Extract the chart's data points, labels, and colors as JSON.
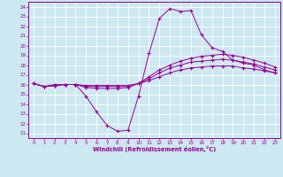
{
  "xlabel": "Windchill (Refroidissement éolien,°C)",
  "bg_color": "#cce8f0",
  "line_color": "#990099",
  "xlim": [
    -0.5,
    23.5
  ],
  "ylim": [
    10.5,
    24.5
  ],
  "xticks": [
    0,
    1,
    2,
    3,
    4,
    5,
    6,
    7,
    8,
    9,
    10,
    11,
    12,
    13,
    14,
    15,
    16,
    17,
    18,
    19,
    20,
    21,
    22,
    23
  ],
  "yticks": [
    11,
    12,
    13,
    14,
    15,
    16,
    17,
    18,
    19,
    20,
    21,
    22,
    23,
    24
  ],
  "line1_x": [
    0,
    1,
    2,
    3,
    4,
    5,
    6,
    7,
    8,
    9,
    10,
    11,
    12,
    13,
    14,
    15,
    16,
    17,
    18,
    19,
    20,
    21,
    22,
    23
  ],
  "line1_y": [
    16.1,
    15.8,
    16.0,
    16.0,
    16.0,
    14.8,
    13.2,
    11.8,
    11.2,
    11.3,
    14.8,
    19.2,
    22.8,
    23.8,
    23.5,
    23.6,
    21.1,
    19.8,
    19.4,
    18.5,
    18.2,
    18.0,
    17.5,
    17.2
  ],
  "line2_x": [
    0,
    1,
    2,
    3,
    4,
    5,
    6,
    7,
    8,
    9,
    10,
    11,
    12,
    13,
    14,
    15,
    16,
    17,
    18,
    19,
    20,
    21,
    22,
    23
  ],
  "line2_y": [
    16.1,
    15.8,
    15.9,
    16.0,
    16.0,
    15.7,
    15.6,
    15.6,
    15.6,
    15.7,
    16.1,
    16.8,
    17.5,
    18.0,
    18.4,
    18.7,
    18.9,
    19.0,
    19.1,
    19.0,
    18.8,
    18.5,
    18.2,
    17.8
  ],
  "line3_x": [
    0,
    1,
    2,
    3,
    4,
    5,
    6,
    7,
    8,
    9,
    10,
    11,
    12,
    13,
    14,
    15,
    16,
    17,
    18,
    19,
    20,
    21,
    22,
    23
  ],
  "line3_y": [
    16.1,
    15.8,
    15.9,
    16.0,
    16.0,
    15.9,
    15.9,
    15.9,
    15.9,
    15.9,
    16.1,
    16.4,
    16.8,
    17.2,
    17.5,
    17.7,
    17.8,
    17.9,
    17.9,
    17.9,
    17.7,
    17.6,
    17.4,
    17.2
  ],
  "line4_x": [
    0,
    1,
    2,
    3,
    4,
    5,
    6,
    7,
    8,
    9,
    10,
    11,
    12,
    13,
    14,
    15,
    16,
    17,
    18,
    19,
    20,
    21,
    22,
    23
  ],
  "line4_y": [
    16.1,
    15.8,
    15.9,
    16.0,
    16.0,
    15.8,
    15.8,
    15.8,
    15.8,
    15.8,
    16.1,
    16.6,
    17.2,
    17.7,
    18.0,
    18.3,
    18.4,
    18.5,
    18.6,
    18.5,
    18.3,
    18.1,
    17.8,
    17.5
  ]
}
